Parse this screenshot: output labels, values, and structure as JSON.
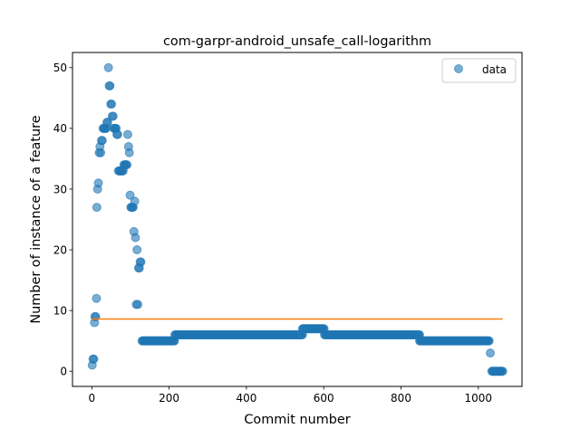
{
  "chart_data": {
    "type": "scatter",
    "title": "com-garpr-android_unsafe_call-logarithm",
    "xlabel": "Commit number",
    "ylabel": "Number of instance of a feature",
    "xlim": [
      -50,
      1113
    ],
    "ylim": [
      -2.5,
      52.5
    ],
    "xticks": [
      0,
      200,
      400,
      600,
      800,
      1000
    ],
    "yticks": [
      0,
      10,
      20,
      30,
      40,
      50
    ],
    "legend": {
      "position": "top-right",
      "entries": [
        "data"
      ]
    },
    "colors": {
      "data": "#1f77b4",
      "fit": "#ff7f0e"
    },
    "series": [
      {
        "name": "data",
        "style": "markers",
        "segments": [
          {
            "x_from": 130,
            "x_to": 215,
            "y": 5
          },
          {
            "x_from": 215,
            "x_to": 545,
            "y": 6
          },
          {
            "x_from": 545,
            "x_to": 602,
            "y": 7
          },
          {
            "x_from": 602,
            "x_to": 848,
            "y": 6
          },
          {
            "x_from": 848,
            "x_to": 1028,
            "y": 5
          },
          {
            "x_from": 1035,
            "x_to": 1063,
            "y": 0
          }
        ],
        "points": [
          [
            1,
            1
          ],
          [
            3,
            2
          ],
          [
            5,
            2
          ],
          [
            7,
            8
          ],
          [
            8,
            9
          ],
          [
            10,
            9
          ],
          [
            12,
            12
          ],
          [
            13,
            27
          ],
          [
            15,
            30
          ],
          [
            17,
            31
          ],
          [
            19,
            36
          ],
          [
            21,
            37
          ],
          [
            23,
            36
          ],
          [
            25,
            38
          ],
          [
            27,
            38
          ],
          [
            29,
            40
          ],
          [
            31,
            40
          ],
          [
            33,
            40
          ],
          [
            35,
            40
          ],
          [
            37,
            40
          ],
          [
            39,
            41
          ],
          [
            41,
            41
          ],
          [
            43,
            50
          ],
          [
            45,
            47
          ],
          [
            47,
            47
          ],
          [
            49,
            44
          ],
          [
            51,
            44
          ],
          [
            53,
            42
          ],
          [
            55,
            42
          ],
          [
            57,
            40
          ],
          [
            59,
            40
          ],
          [
            61,
            40
          ],
          [
            63,
            40
          ],
          [
            65,
            39
          ],
          [
            67,
            39
          ],
          [
            69,
            33
          ],
          [
            71,
            33
          ],
          [
            73,
            33
          ],
          [
            75,
            33
          ],
          [
            77,
            33
          ],
          [
            79,
            33
          ],
          [
            81,
            33
          ],
          [
            83,
            34
          ],
          [
            85,
            34
          ],
          [
            87,
            34
          ],
          [
            89,
            34
          ],
          [
            91,
            34
          ],
          [
            93,
            39
          ],
          [
            95,
            37
          ],
          [
            97,
            36
          ],
          [
            99,
            29
          ],
          [
            101,
            27
          ],
          [
            103,
            27
          ],
          [
            105,
            27
          ],
          [
            107,
            27
          ],
          [
            109,
            23
          ],
          [
            111,
            28
          ],
          [
            113,
            22
          ],
          [
            115,
            11
          ],
          [
            117,
            20
          ],
          [
            119,
            11
          ],
          [
            121,
            17
          ],
          [
            123,
            17
          ],
          [
            125,
            18
          ],
          [
            127,
            18
          ],
          [
            1031,
            3
          ]
        ]
      },
      {
        "name": "",
        "style": "line",
        "x": [
          0,
          1063
        ],
        "y": [
          8.6,
          8.6
        ]
      }
    ]
  }
}
